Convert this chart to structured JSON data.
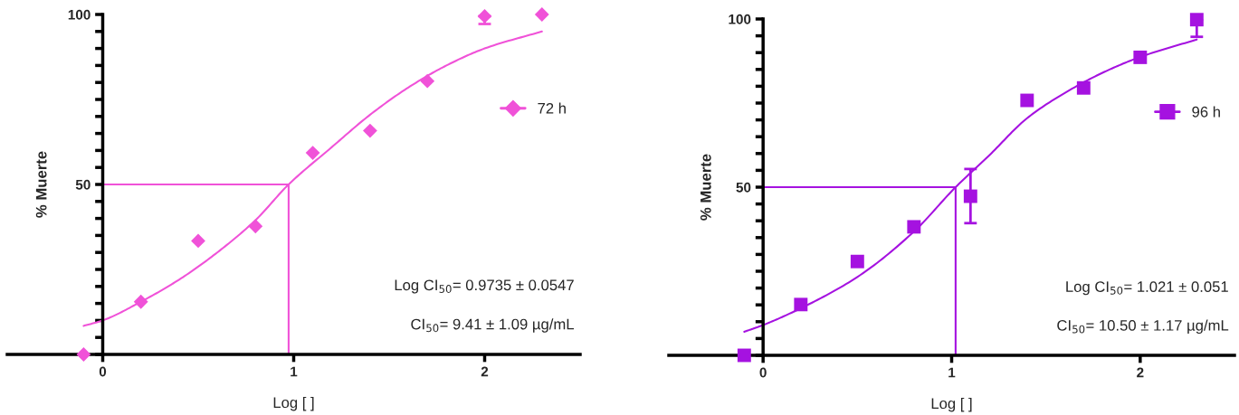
{
  "chart_data": [
    {
      "type": "scatter",
      "xlabel": "Log [ ]",
      "ylabel": "% Muerte",
      "xlim": [
        -0.5,
        2.5
      ],
      "ylim": [
        0,
        100
      ],
      "xticks": [
        0,
        1,
        2
      ],
      "yticks": [
        {
          "value": 0,
          "label": null
        },
        {
          "value": 5,
          "label": null
        },
        {
          "value": 10,
          "label": null
        },
        {
          "value": 15,
          "label": null
        },
        {
          "value": 20,
          "label": null
        },
        {
          "value": 25,
          "label": null
        },
        {
          "value": 30,
          "label": null
        },
        {
          "value": 35,
          "label": null
        },
        {
          "value": 40,
          "label": null
        },
        {
          "value": 45,
          "label": null
        },
        50,
        {
          "value": 55,
          "label": null
        },
        {
          "value": 60,
          "label": null
        },
        {
          "value": 65,
          "label": null
        },
        {
          "value": 70,
          "label": null
        },
        {
          "value": 75,
          "label": null
        },
        {
          "value": 80,
          "label": null
        },
        {
          "value": 85,
          "label": null
        },
        {
          "value": 90,
          "label": null
        },
        {
          "value": 95,
          "label": null
        },
        100
      ],
      "legend": "right",
      "grid": false,
      "series": [
        {
          "name": "72 h",
          "color": "#f052d8",
          "marker": "diamond",
          "x": [
            -0.1,
            0.2,
            0.5,
            0.8,
            1.1,
            1.4,
            1.7,
            2.0,
            2.3
          ],
          "values": [
            0,
            15.5,
            33.4,
            37.7,
            59.3,
            65.8,
            80.4,
            99.5,
            100
          ],
          "errors": [
            null,
            null,
            null,
            null,
            null,
            null,
            null,
            [
              97.2,
              99.5
            ],
            null
          ]
        },
        {
          "type": "line",
          "color": "#f052d8",
          "x": [
            -0.1,
            0,
            0.2,
            0.4,
            0.6,
            0.8,
            0.9735,
            1.2,
            1.4,
            1.6,
            1.8,
            2.0,
            2.3
          ],
          "values": [
            8.4,
            10,
            15.5,
            22,
            30,
            39.5,
            50,
            61,
            70.5,
            78.5,
            85,
            90,
            95
          ]
        },
        {
          "type": "line",
          "color": "#f052d8",
          "x": [
            0,
            0.9735,
            0.9735
          ],
          "values": [
            50,
            50,
            0
          ]
        }
      ],
      "annotations": [
        "Log CI$_{50}$= 0.9735 ± 0.0547",
        "CI$_{50}$= 9.41 ± 1.09 µg/mL"
      ]
    },
    {
      "type": "scatter",
      "xlabel": "Log [ ]",
      "ylabel": "% Muerte",
      "xlim": [
        -0.5,
        2.5
      ],
      "ylim": [
        0,
        100
      ],
      "xticks": [
        0,
        1,
        2
      ],
      "yticks": [
        {
          "value": 0,
          "label": null
        },
        {
          "value": 5,
          "label": null
        },
        {
          "value": 10,
          "label": null
        },
        {
          "value": 15,
          "label": null
        },
        {
          "value": 20,
          "label": null
        },
        {
          "value": 25,
          "label": null
        },
        {
          "value": 30,
          "label": null
        },
        {
          "value": 35,
          "label": null
        },
        {
          "value": 40,
          "label": null
        },
        {
          "value": 45,
          "label": null
        },
        50,
        {
          "value": 55,
          "label": null
        },
        {
          "value": 60,
          "label": null
        },
        {
          "value": 65,
          "label": null
        },
        {
          "value": 70,
          "label": null
        },
        {
          "value": 75,
          "label": null
        },
        {
          "value": 80,
          "label": null
        },
        {
          "value": 85,
          "label": null
        },
        {
          "value": 90,
          "label": null
        },
        {
          "value": 95,
          "label": null
        },
        100
      ],
      "legend": "right",
      "grid": false,
      "series": [
        {
          "name": "96 h",
          "color": "#a512e0",
          "marker": "square",
          "x": [
            -0.1,
            0.2,
            0.5,
            0.8,
            1.1,
            1.4,
            1.7,
            2.0,
            2.3
          ],
          "values": [
            0,
            15.1,
            27.9,
            38.2,
            47.3,
            75.8,
            79.5,
            88.6,
            99.8
          ],
          "errors": [
            null,
            null,
            null,
            null,
            [
              39.3,
              55.4
            ],
            null,
            null,
            null,
            [
              94.7,
              99.8
            ]
          ]
        },
        {
          "type": "line",
          "color": "#a512e0",
          "x": [
            -0.1,
            0,
            0.2,
            0.5,
            0.8,
            1.021,
            1.2,
            1.4,
            1.6,
            1.8,
            2.0,
            2.3
          ],
          "values": [
            7,
            9,
            14,
            23.3,
            36.8,
            50,
            59.5,
            70.5,
            78,
            84,
            88.7,
            93.9
          ]
        },
        {
          "type": "line",
          "color": "#a512e0",
          "x": [
            0,
            1.021,
            1.021
          ],
          "values": [
            50,
            50,
            0
          ]
        }
      ],
      "annotations": [
        "Log CI$_{50}$= 1.021 ± 0.051",
        "CI$_{50}$= 10.50 ± 1.17 µg/mL"
      ]
    }
  ]
}
